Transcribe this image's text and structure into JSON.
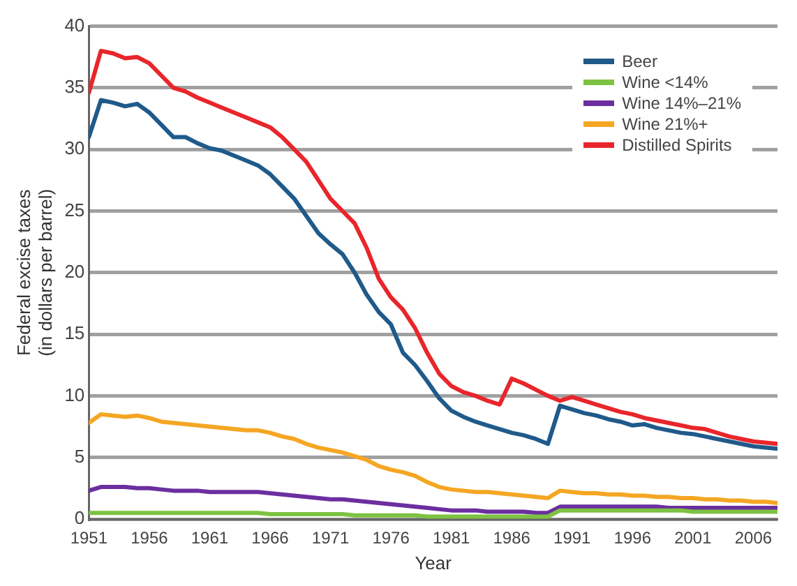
{
  "chart_data": {
    "type": "line",
    "xlabel": "Year",
    "ylabel": "Federal excise taxes\n(in dollars per barrel)",
    "x": [
      1951,
      1952,
      1953,
      1954,
      1955,
      1956,
      1957,
      1958,
      1959,
      1960,
      1961,
      1962,
      1963,
      1964,
      1965,
      1966,
      1967,
      1968,
      1969,
      1970,
      1971,
      1972,
      1973,
      1974,
      1975,
      1976,
      1977,
      1978,
      1979,
      1980,
      1981,
      1982,
      1983,
      1984,
      1985,
      1986,
      1987,
      1988,
      1989,
      1990,
      1991,
      1992,
      1993,
      1994,
      1995,
      1996,
      1997,
      1998,
      1999,
      2000,
      2001,
      2002,
      2003,
      2004,
      2005,
      2006,
      2007,
      2008
    ],
    "xlim": [
      1951,
      2008
    ],
    "xticks": [
      1951,
      1956,
      1961,
      1966,
      1971,
      1976,
      1981,
      1986,
      1991,
      1996,
      2001,
      2006
    ],
    "ylim": [
      0,
      40
    ],
    "yticks": [
      0,
      5,
      10,
      15,
      20,
      25,
      30,
      35,
      40
    ],
    "grid": "y",
    "legend": "top right",
    "marker": "none",
    "line_style": "solid",
    "series": [
      {
        "name": "Beer",
        "color": "#1f5a8a",
        "values": [
          31,
          34,
          33.8,
          33.5,
          33.7,
          33,
          32,
          31,
          31,
          30.5,
          30.1,
          29.9,
          29.5,
          29.1,
          28.7,
          28,
          27,
          26,
          24.6,
          23.2,
          22.3,
          21.5,
          20,
          18.2,
          16.8,
          15.8,
          13.5,
          12.5,
          11.2,
          9.8,
          8.8,
          8.3,
          7.9,
          7.6,
          7.3,
          7,
          6.8,
          6.5,
          6.1,
          9.2,
          8.9,
          8.6,
          8.4,
          8.1,
          7.9,
          7.6,
          7.7,
          7.4,
          7.2,
          7,
          6.9,
          6.7,
          6.5,
          6.3,
          6.1,
          5.9,
          5.8,
          5.7
        ]
      },
      {
        "name": "Wine <14%",
        "color": "#7dc242",
        "values": [
          0.5,
          0.5,
          0.5,
          0.5,
          0.5,
          0.5,
          0.5,
          0.5,
          0.5,
          0.5,
          0.5,
          0.5,
          0.5,
          0.5,
          0.5,
          0.4,
          0.4,
          0.4,
          0.4,
          0.4,
          0.4,
          0.4,
          0.3,
          0.3,
          0.3,
          0.3,
          0.3,
          0.3,
          0.2,
          0.2,
          0.2,
          0.2,
          0.2,
          0.2,
          0.2,
          0.2,
          0.2,
          0.2,
          0.2,
          0.7,
          0.7,
          0.7,
          0.7,
          0.7,
          0.7,
          0.7,
          0.7,
          0.7,
          0.7,
          0.7,
          0.6,
          0.6,
          0.6,
          0.6,
          0.6,
          0.6,
          0.6,
          0.6
        ]
      },
      {
        "name": "Wine 14%–21%",
        "color": "#6b2fa0",
        "values": [
          2.3,
          2.6,
          2.6,
          2.6,
          2.5,
          2.5,
          2.4,
          2.3,
          2.3,
          2.3,
          2.2,
          2.2,
          2.2,
          2.2,
          2.2,
          2.1,
          2,
          1.9,
          1.8,
          1.7,
          1.6,
          1.6,
          1.5,
          1.4,
          1.3,
          1.2,
          1.1,
          1,
          0.9,
          0.8,
          0.7,
          0.7,
          0.7,
          0.6,
          0.6,
          0.6,
          0.6,
          0.5,
          0.5,
          1,
          1,
          1,
          1,
          1,
          1,
          1,
          1,
          1,
          0.9,
          0.9,
          0.9,
          0.9,
          0.9,
          0.9,
          0.9,
          0.9,
          0.9,
          0.9
        ]
      },
      {
        "name": "Wine 21%+",
        "color": "#f5a623",
        "values": [
          7.8,
          8.5,
          8.4,
          8.3,
          8.4,
          8.2,
          7.9,
          7.8,
          7.7,
          7.6,
          7.5,
          7.4,
          7.3,
          7.2,
          7.2,
          7,
          6.7,
          6.5,
          6.1,
          5.8,
          5.6,
          5.4,
          5.1,
          4.8,
          4.3,
          4,
          3.8,
          3.5,
          3,
          2.6,
          2.4,
          2.3,
          2.2,
          2.2,
          2.1,
          2,
          1.9,
          1.8,
          1.7,
          2.3,
          2.2,
          2.1,
          2.1,
          2,
          2,
          1.9,
          1.9,
          1.8,
          1.8,
          1.7,
          1.7,
          1.6,
          1.6,
          1.5,
          1.5,
          1.4,
          1.4,
          1.3
        ]
      },
      {
        "name": "Distilled Spirits",
        "color": "#e8262b",
        "values": [
          34.6,
          38,
          37.8,
          37.4,
          37.5,
          37,
          36,
          35,
          34.7,
          34.2,
          33.8,
          33.4,
          33,
          32.6,
          32.2,
          31.8,
          31,
          30,
          29,
          27.5,
          26,
          25,
          24,
          22,
          19.5,
          18,
          17,
          15.5,
          13.5,
          11.8,
          10.8,
          10.3,
          10,
          9.6,
          9.3,
          11.4,
          11,
          10.5,
          10,
          9.6,
          9.9,
          9.6,
          9.3,
          9,
          8.7,
          8.5,
          8.2,
          8,
          7.8,
          7.6,
          7.4,
          7.3,
          7,
          6.7,
          6.5,
          6.3,
          6.2,
          6.1
        ]
      }
    ]
  }
}
